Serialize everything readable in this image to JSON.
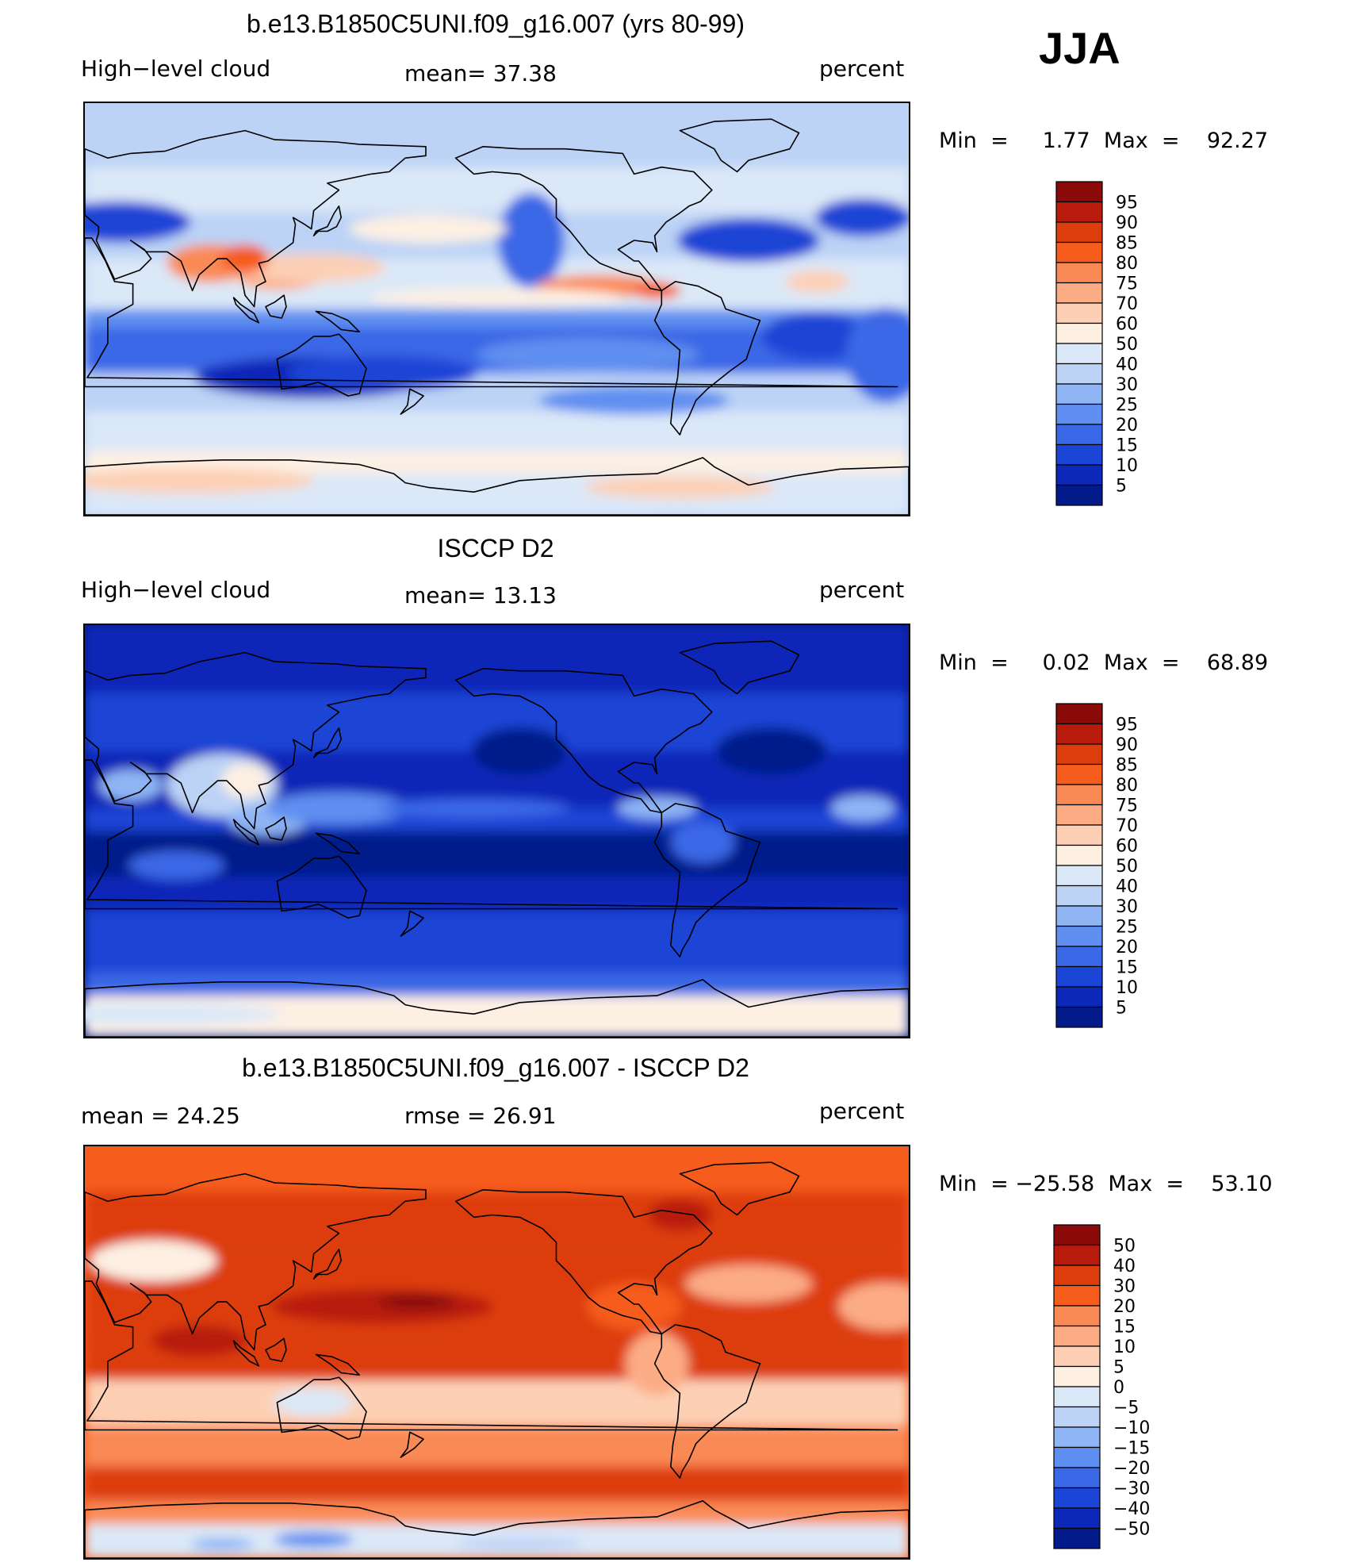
{
  "season": "JJA",
  "panels": [
    {
      "title": "b.e13.B1850C5UNI.f09_g16.007 (yrs 80-99)",
      "left_label": "High−level cloud",
      "center_label": "mean=   37.38",
      "right_label": "percent",
      "minmax": "Min  =     1.77  Max  =    92.27",
      "colorbar": {
        "labels": [
          "95",
          "90",
          "85",
          "80",
          "75",
          "70",
          "60",
          "50",
          "40",
          "30",
          "25",
          "20",
          "15",
          "10",
          "5"
        ],
        "colors": [
          "#8a0a0a",
          "#b81a0c",
          "#dd3c0c",
          "#f65c1c",
          "#fa8a55",
          "#fcac85",
          "#fdd0b5",
          "#fdf0e3",
          "#dbe8f8",
          "#bcd3f6",
          "#8fb5f5",
          "#5f8ff0",
          "#3a68e6",
          "#1a45d6",
          "#0b28b8",
          "#021a8a"
        ]
      },
      "style": "model"
    },
    {
      "title": "ISCCP D2",
      "left_label": "High−level cloud",
      "center_label": "mean=   13.13",
      "right_label": "percent",
      "minmax": "Min  =     0.02  Max  =    68.89",
      "colorbar": {
        "labels": [
          "95",
          "90",
          "85",
          "80",
          "75",
          "70",
          "60",
          "50",
          "40",
          "30",
          "25",
          "20",
          "15",
          "10",
          "5"
        ],
        "colors": [
          "#8a0a0a",
          "#b81a0c",
          "#dd3c0c",
          "#f65c1c",
          "#fa8a55",
          "#fcac85",
          "#fdd0b5",
          "#fdf0e3",
          "#dbe8f8",
          "#bcd3f6",
          "#8fb5f5",
          "#5f8ff0",
          "#3a68e6",
          "#1a45d6",
          "#0b28b8",
          "#021a8a"
        ]
      },
      "style": "obs"
    },
    {
      "title": "b.e13.B1850C5UNI.f09_g16.007 - ISCCP D2",
      "left_label": "mean  =    24.25",
      "center_label": "rmse  =    26.91",
      "right_label": "percent",
      "minmax": "Min  = −25.58  Max  =    53.10",
      "colorbar": {
        "labels": [
          "50",
          "40",
          "30",
          "20",
          "15",
          "10",
          "5",
          "0",
          "−5",
          "−10",
          "−15",
          "−20",
          "−30",
          "−40",
          "−50"
        ],
        "colors": [
          "#8a0a0a",
          "#b81a0c",
          "#dd3c0c",
          "#f65c1c",
          "#fa8a55",
          "#fcac85",
          "#fdd0b5",
          "#fdf0e3",
          "#dbe8f8",
          "#bcd3f6",
          "#8fb5f5",
          "#5f8ff0",
          "#3a68e6",
          "#1a45d6",
          "#0b28b8",
          "#021a8a"
        ]
      },
      "style": "diff"
    }
  ]
}
